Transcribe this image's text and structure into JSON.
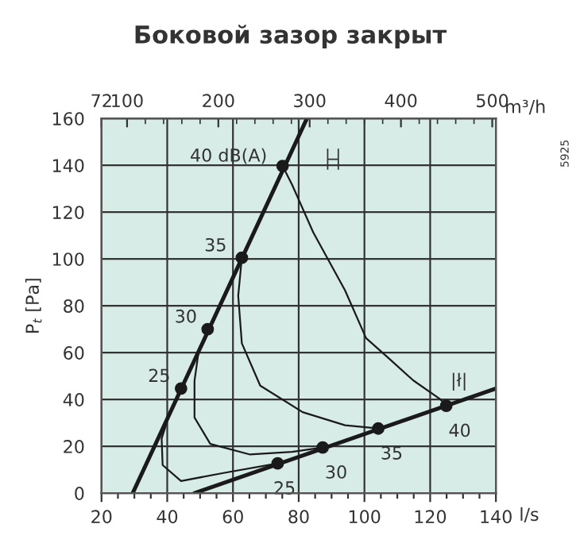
{
  "chart_data": {
    "type": "line",
    "title": "Боковой зазор закрыт",
    "xlabel": "l/s",
    "ylabel": "P$_{t}$ [Pa]",
    "x2label": "m³/h",
    "xlim": [
      20,
      140
    ],
    "ylim": [
      0,
      160
    ],
    "x2lim": [
      72,
      504
    ],
    "xticks": [
      20,
      {
        "value": 25,
        "label": null
      },
      {
        "value": 30,
        "label": null
      },
      {
        "value": 35,
        "label": null
      },
      40,
      {
        "value": 45,
        "label": null
      },
      {
        "value": 50,
        "label": null
      },
      {
        "value": 55,
        "label": null
      },
      60,
      {
        "value": 65,
        "label": null
      },
      {
        "value": 70,
        "label": null
      },
      {
        "value": 75,
        "label": null
      },
      80,
      {
        "value": 85,
        "label": null
      },
      {
        "value": 90,
        "label": null
      },
      {
        "value": 95,
        "label": null
      },
      100,
      {
        "value": 105,
        "label": null
      },
      {
        "value": 110,
        "label": null
      },
      {
        "value": 115,
        "label": null
      },
      120,
      {
        "value": 125,
        "label": null
      },
      {
        "value": 130,
        "label": null
      },
      {
        "value": 135,
        "label": null
      },
      140
    ],
    "yticks": [
      0,
      20,
      40,
      60,
      80,
      100,
      120,
      140,
      160
    ],
    "x2ticks": [
      72,
      100,
      {
        "value": 120,
        "label": null
      },
      {
        "value": 140,
        "label": null
      },
      {
        "value": 160,
        "label": null
      },
      {
        "value": 180,
        "label": null
      },
      200,
      {
        "value": 220,
        "label": null
      },
      {
        "value": 240,
        "label": null
      },
      {
        "value": 260,
        "label": null
      },
      {
        "value": 280,
        "label": null
      },
      300,
      {
        "value": 320,
        "label": null
      },
      {
        "value": 340,
        "label": null
      },
      {
        "value": 360,
        "label": null
      },
      {
        "value": 380,
        "label": null
      },
      400,
      {
        "value": 420,
        "label": null
      },
      {
        "value": 440,
        "label": null
      },
      {
        "value": 460,
        "label": null
      },
      {
        "value": 480,
        "label": null
      },
      500
    ],
    "grid": true,
    "series": [
      {
        "color": "#1a1a1a",
        "x": [
          29.5,
          82.5
        ],
        "values": [
          0,
          160
        ]
      },
      {
        "color": "#1a1a1a",
        "x": [
          48.3,
          140
        ],
        "values": [
          0,
          44.7
        ]
      },
      {
        "color": "#1a1a1a",
        "x": [
          44.2,
          40.5,
          38.3,
          38.6,
          44.2,
          57.1,
          73.6
        ],
        "values": [
          44.7,
          33,
          23.3,
          12,
          5.2,
          8.6,
          12.7
        ]
      },
      {
        "color": "#1a1a1a",
        "x": [
          52.3,
          49.5,
          48.3,
          48.3,
          53.1,
          65.2,
          78,
          87.3
        ],
        "values": [
          70,
          60,
          48,
          32.3,
          21,
          16.5,
          17.6,
          19.5
        ]
      },
      {
        "color": "#1a1a1a",
        "x": [
          62.7,
          61.6,
          62.7,
          68.3,
          81.2,
          94.1,
          104.2
        ],
        "values": [
          100.5,
          84.3,
          64,
          45.9,
          34.6,
          29,
          27.6
        ]
      },
      {
        "color": "#1a1a1a",
        "x": [
          75.1,
          78,
          84.4,
          94.1,
          100.5,
          107.7,
          114.9,
          123,
          124.9
        ],
        "values": [
          139.7,
          131.7,
          111.4,
          86.6,
          66.2,
          57.2,
          48.1,
          40.2,
          37.3
        ]
      },
      {
        "type": "scatter",
        "color": "#1a1a1a",
        "marker": "circle",
        "x": [
          44.2,
          52.3,
          62.7,
          75.1
        ],
        "values": [
          44.7,
          70,
          100.5,
          139.7
        ]
      },
      {
        "type": "scatter",
        "color": "#1a1a1a",
        "marker": "circle",
        "x": [
          73.6,
          87.3,
          104.2,
          124.9
        ],
        "values": [
          12.7,
          19.5,
          27.6,
          37.3
        ]
      }
    ],
    "annotations": [
      {
        "text": "40 dB(A)",
        "x": 75.1,
        "y": 139.7
      },
      {
        "text": "35",
        "x": 62.7,
        "y": 100.5
      },
      {
        "text": "30",
        "x": 52.3,
        "y": 70
      },
      {
        "text": "25",
        "x": 44.2,
        "y": 44.7
      },
      {
        "text": "25",
        "x": 73.6,
        "y": 12.7
      },
      {
        "text": "30",
        "x": 87.3,
        "y": 19.5
      },
      {
        "text": "35",
        "x": 104.2,
        "y": 27.6
      },
      {
        "text": "40",
        "x": 124.9,
        "y": 37.3
      },
      "├┤",
      "|ł|",
      "5925"
    ]
  }
}
